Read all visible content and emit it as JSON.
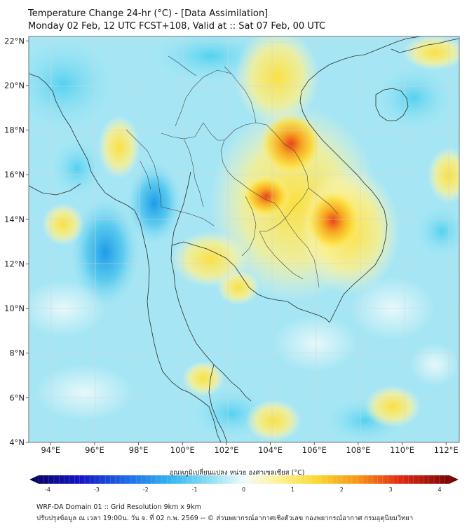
{
  "title": {
    "line1": "Temperature Change 24-hr (°C) - [Data Assimilation]",
    "line2": "Monday 02 Feb, 12 UTC FCST+108, Valid at :: Sat 07 Feb, 00 UTC"
  },
  "map": {
    "lat_labels": [
      "22°N",
      "20°N",
      "18°N",
      "16°N",
      "14°N",
      "12°N",
      "10°N",
      "8°N",
      "6°N",
      "4°N"
    ],
    "lon_labels": [
      "94°E",
      "96°E",
      "98°E",
      "100°E",
      "102°E",
      "104°E",
      "106°E",
      "108°E",
      "110°E",
      "112°E"
    ],
    "lat_range": [
      4,
      22.2
    ],
    "lon_range": [
      93,
      112.6
    ]
  },
  "colorbar": {
    "title": "อุณหภูมิเปลี่ยนแปลง หน่วย องศาเซลเซียส (°C)",
    "ticks": [
      "-4",
      "-3",
      "-2",
      "-1",
      "0",
      "1",
      "2",
      "3",
      "4"
    ],
    "range": [
      -4,
      4
    ]
  },
  "footer": {
    "line1": "WRF-DA Domain 01 :: Grid Resolution 9km x 9km",
    "line2": "ปรับปรุงข้อมูล ณ เวลา 19:00น. วัน จ. ที่ 02 ก.พ. 2569 -- © ส่วนพยากรณ์อากาศเชิงตัวเลข กองพยากรณ์อากาศ กรมอุตุนิยมวิทยา"
  }
}
